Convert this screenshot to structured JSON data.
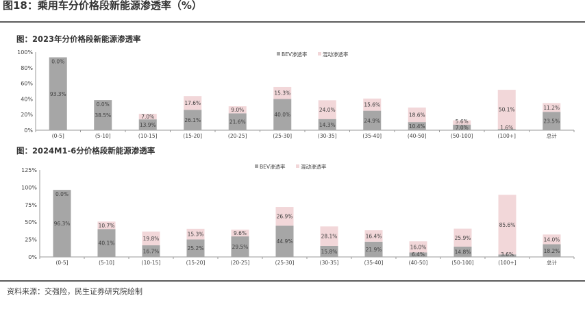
{
  "figure_title": "图18：乘用车分价格段新能源渗透率（%）",
  "source_note": "资料来源：交强险，民生证券研究院绘制",
  "colors": {
    "bev": "#a6a6a6",
    "hybrid": "#f2d7d9",
    "axis": "#999999",
    "text": "#404040"
  },
  "chart_data": [
    {
      "type": "bar",
      "stacked": true,
      "title": "图：2023年分价格段新能源渗透率",
      "categories": [
        "(0-5]",
        "(5-10]",
        "(10-15]",
        "(15-20]",
        "(20-25]",
        "(25-30]",
        "(30-35]",
        "(35-40]",
        "(40-50]",
        "(50-100]",
        "(100+]",
        "总计"
      ],
      "series": [
        {
          "name": "BEV渗透率",
          "values": [
            93.3,
            38.5,
            13.9,
            26.1,
            21.6,
            40.0,
            14.3,
            24.9,
            10.4,
            7.0,
            1.6,
            23.5
          ]
        },
        {
          "name": "混动渗透率",
          "values": [
            0.0,
            0.0,
            7.0,
            17.6,
            9.0,
            15.3,
            24.0,
            15.6,
            18.6,
            5.6,
            50.1,
            11.2
          ]
        }
      ],
      "bev_labels": [
        "93.3%",
        "38.5%",
        "13.9%",
        "26.1%",
        "21.6%",
        "40.0%",
        "14.3%",
        "24.9%",
        "10.4%",
        "7.0%",
        "1.6%",
        "23.5%"
      ],
      "hybrid_labels": [
        "0.0%",
        "0.0%",
        "7.0%",
        "17.6%",
        "9.0%",
        "15.3%",
        "24.0%",
        "15.6%",
        "18.6%",
        "5.6%",
        "50.1%",
        "11.2%"
      ],
      "yticks": [
        "0%",
        "20%",
        "40%",
        "60%",
        "80%",
        "100%"
      ],
      "ylim": [
        0,
        100
      ],
      "legend_position": "top-center",
      "grid": false
    },
    {
      "type": "bar",
      "stacked": true,
      "title": "图：2024M1-6分价格段新能源渗透率",
      "categories": [
        "(0-5]",
        "(5-10]",
        "(10-15]",
        "(15-20]",
        "(20-25]",
        "(25-30]",
        "(30-35]",
        "(35-40]",
        "(40-50]",
        "(50-100]",
        "(100+]",
        "总计"
      ],
      "series": [
        {
          "name": "BEV渗透率",
          "values": [
            96.3,
            40.1,
            16.7,
            25.2,
            29.5,
            44.9,
            15.8,
            21.9,
            6.4,
            14.8,
            3.6,
            18.2
          ]
        },
        {
          "name": "混动渗透率",
          "values": [
            0.0,
            10.7,
            19.8,
            15.3,
            9.6,
            26.9,
            28.1,
            16.4,
            16.0,
            25.9,
            85.6,
            14.0
          ]
        }
      ],
      "bev_labels": [
        "96.3%",
        "40.1%",
        "16.7%",
        "25.2%",
        "29.5%",
        "44.9%",
        "15.8%",
        "21.9%",
        "6.4%",
        "14.8%",
        "3.6%",
        "18.2%"
      ],
      "hybrid_labels": [
        "0.0%",
        "10.7%",
        "19.8%",
        "15.3%",
        "9.6%",
        "26.9%",
        "28.1%",
        "16.4%",
        "16.0%",
        "25.9%",
        "85.6%",
        "14.0%"
      ],
      "yticks": [
        "0%",
        "25%",
        "50%",
        "75%",
        "100%",
        "125%"
      ],
      "ylim": [
        0,
        125
      ],
      "legend_position": "top-center",
      "grid": false
    }
  ]
}
